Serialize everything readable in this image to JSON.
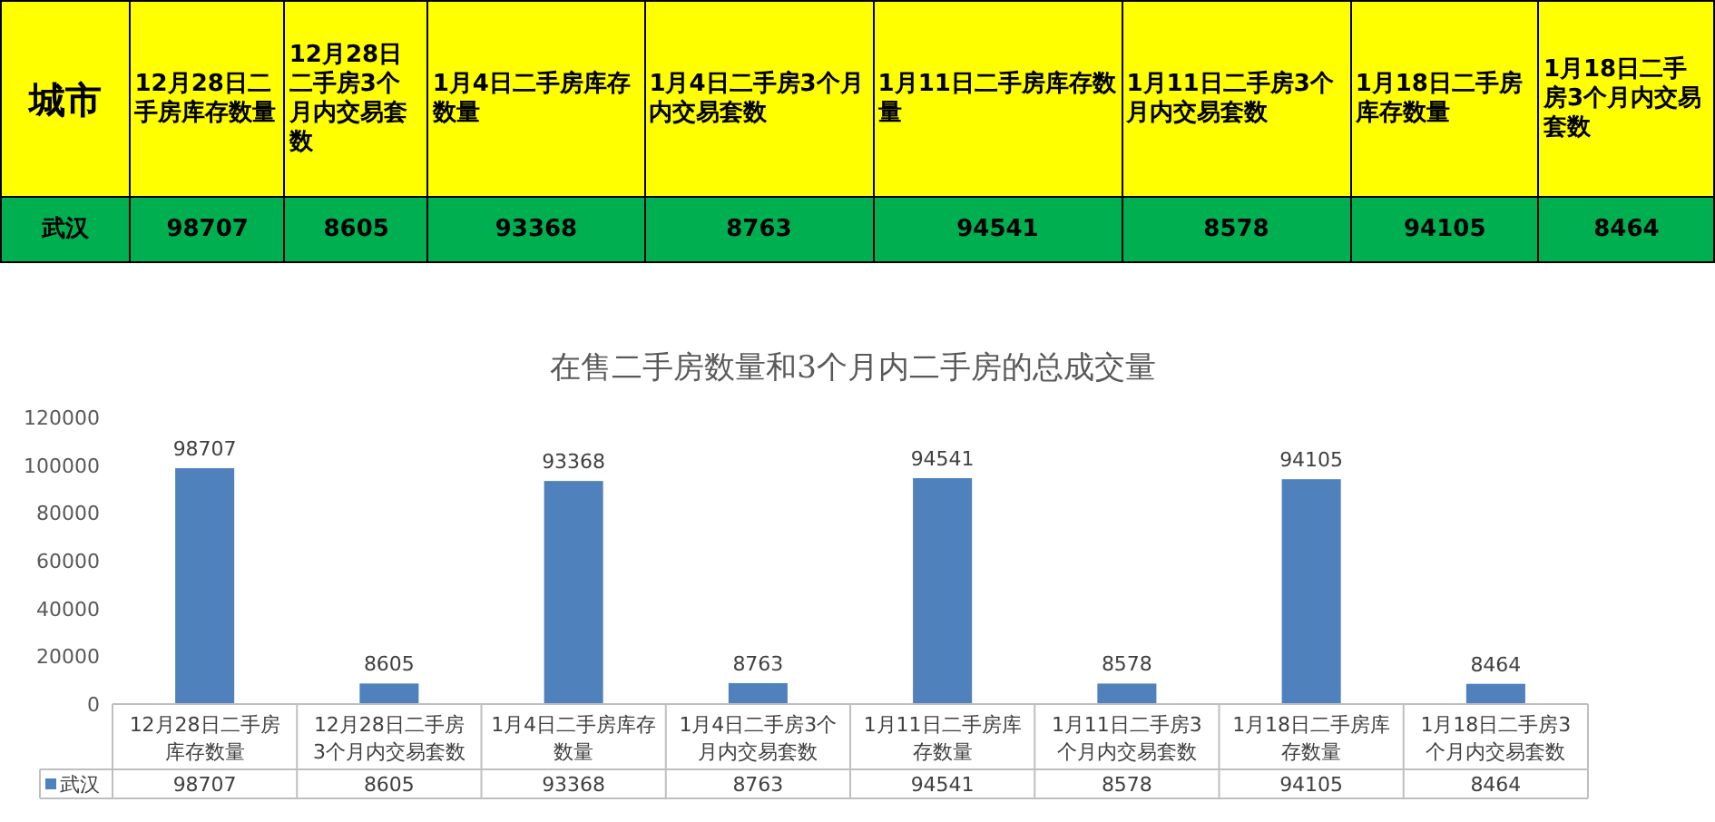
{
  "chart_data": [
    {
      "type": "other",
      "annotations": [
        "城市"
      ],
      "data_labels": true,
      "categories": [
        "12月28日二手房库存数量",
        "12月28日二手房3个月内交易套数",
        "1月4日二手房库存数量",
        "1月4日二手房3个月内交易套数",
        "1月11日二手房库存数量",
        "1月11日二手房3个月内交易套数",
        "1月18日二手房库存数量",
        "1月18日二手房3个月内交易套数"
      ],
      "series": [
        {
          "name": "武汉",
          "values": [
            98707,
            8605,
            93368,
            8763,
            94541,
            8578,
            94105,
            8464
          ]
        }
      ]
    },
    {
      "type": "bar",
      "title": "在售二手房数量和3个月内二手房的总成交量",
      "categories": [
        "12月28日二手房库存数量",
        "12月28日二手房3个月内交易套数",
        "1月4日二手房库存数量",
        "1月4日二手房3个月内交易套数",
        "1月11日二手房库存数量",
        "1月11日二手房3个月内交易套数",
        "1月18日二手房库存数量",
        "1月18日二手房3个月内交易套数"
      ],
      "series": [
        {
          "name": "武汉",
          "color": "#4f81bd",
          "values": [
            98707,
            8605,
            93368,
            8763,
            94541,
            8578,
            94105,
            8464
          ],
          "value_labels": [
            "98707",
            "8605",
            "93368",
            "8763",
            "94541",
            "8578",
            "94105",
            "8464"
          ]
        }
      ],
      "ylim": [
        0,
        120000
      ],
      "yticks": [
        0,
        20000,
        40000,
        60000,
        80000,
        100000,
        120000
      ],
      "data_labels": true,
      "legend": "bottom",
      "grid": false
    }
  ]
}
